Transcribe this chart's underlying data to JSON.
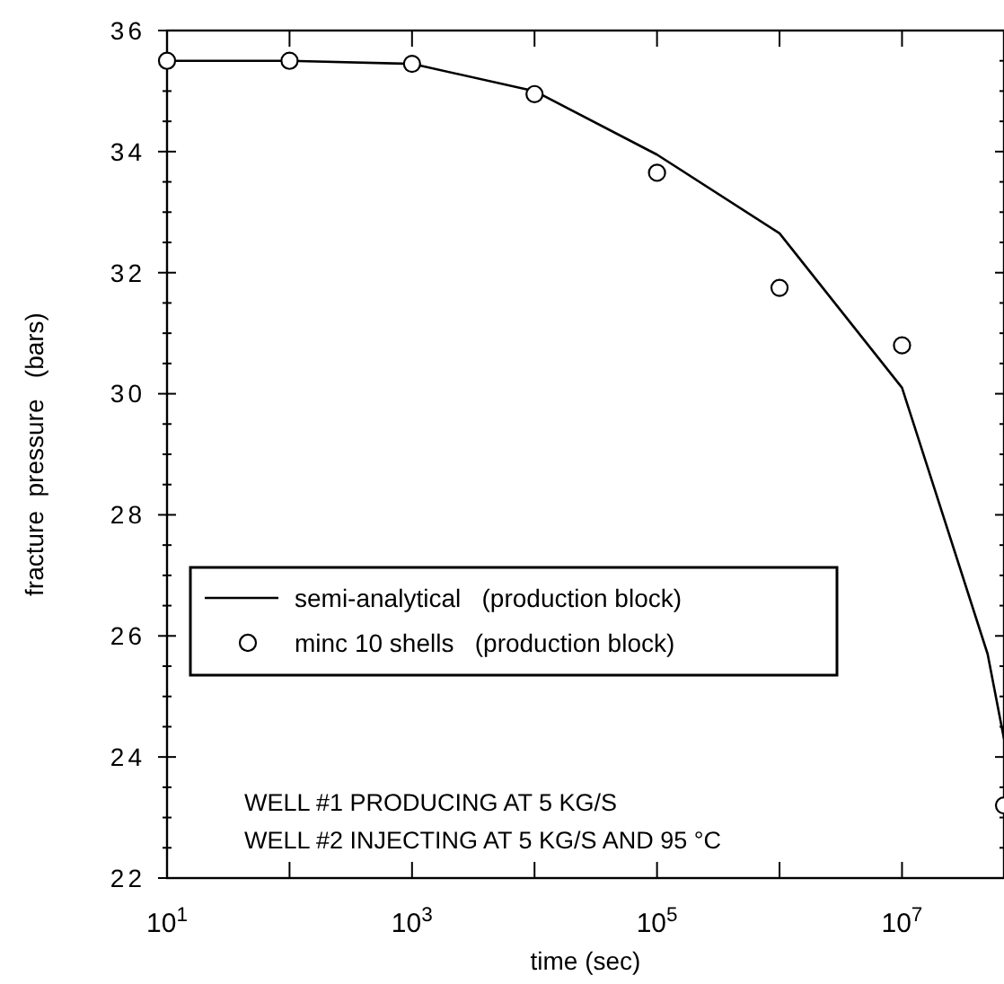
{
  "chart_data": {
    "type": "line",
    "xlabel": "time  (sec)",
    "ylabel": "fracture  pressure   (bars)",
    "log": "x",
    "xlim": [
      10,
      68000000
    ],
    "ylim": [
      22,
      36
    ],
    "xticks": [
      {
        "value": 10,
        "label": "10$^{1}$"
      },
      {
        "value": 100,
        "label": null
      },
      {
        "value": 1000,
        "label": "10$^{3}$"
      },
      {
        "value": 10000,
        "label": null
      },
      {
        "value": 100000,
        "label": "10$^{5}$"
      },
      {
        "value": 1000000,
        "label": null
      },
      {
        "value": 10000000,
        "label": "10$^{7}$"
      }
    ],
    "yticks": [
      22,
      {
        "value": 22.5,
        "label": null
      },
      {
        "value": 23,
        "label": null
      },
      {
        "value": 23.5,
        "label": null
      },
      24,
      {
        "value": 24.5,
        "label": null
      },
      {
        "value": 25,
        "label": null
      },
      {
        "value": 25.5,
        "label": null
      },
      26,
      {
        "value": 26.5,
        "label": null
      },
      {
        "value": 27,
        "label": null
      },
      {
        "value": 27.5,
        "label": null
      },
      28,
      {
        "value": 28.5,
        "label": null
      },
      {
        "value": 29,
        "label": null
      },
      {
        "value": 29.5,
        "label": null
      },
      30,
      {
        "value": 30.5,
        "label": null
      },
      {
        "value": 31,
        "label": null
      },
      {
        "value": 31.5,
        "label": null
      },
      32,
      {
        "value": 32.5,
        "label": null
      },
      {
        "value": 33,
        "label": null
      },
      {
        "value": 33.5,
        "label": null
      },
      34,
      {
        "value": 34.5,
        "label": null
      },
      {
        "value": 35,
        "label": null
      },
      {
        "value": 35.5,
        "label": null
      },
      36
    ],
    "grid": false,
    "legend": "left",
    "series": [
      {
        "name": "semi-analytical   (production block)",
        "color": "#000000",
        "marker": "none",
        "line_style": "solid",
        "x": [
          10,
          100,
          1000,
          10000,
          100000,
          1000000,
          10000000,
          50000000,
          68000000
        ],
        "values": [
          35.5,
          35.5,
          35.45,
          35.0,
          33.95,
          32.65,
          30.1,
          25.7,
          24.3
        ]
      },
      {
        "name": "minc 10 shells   (production block)",
        "type": "scatter",
        "color": "#000000",
        "marker": "circle",
        "x": [
          10,
          100,
          1000,
          10000,
          100000,
          1000000,
          10000000,
          68000000
        ],
        "values": [
          35.5,
          35.5,
          35.45,
          34.95,
          33.65,
          31.75,
          30.8,
          23.2
        ]
      }
    ],
    "annotations": [
      "WELL #1 PRODUCING AT 5 KG/S",
      "WELL #2 INJECTING AT 5 KG/S AND 95 °C"
    ]
  }
}
